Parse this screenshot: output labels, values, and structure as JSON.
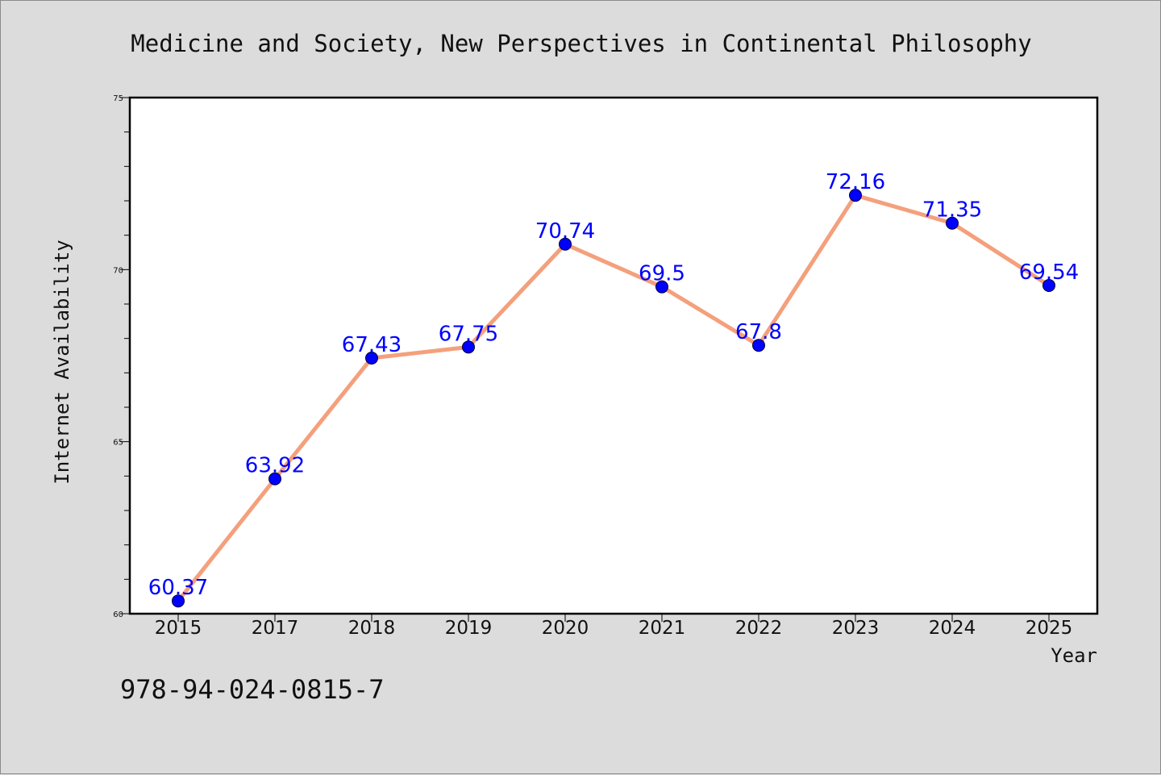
{
  "chart_data": {
    "type": "line",
    "title": "Medicine and Society, New Perspectives in Continental Philosophy",
    "xlabel": "Year",
    "ylabel": "Internet Availability",
    "categories": [
      "2015",
      "2017",
      "2018",
      "2019",
      "2020",
      "2021",
      "2022",
      "2023",
      "2024",
      "2025"
    ],
    "series": [
      {
        "values": [
          60.37,
          63.92,
          67.43,
          67.75,
          70.74,
          69.5,
          67.8,
          72.16,
          71.35,
          69.54
        ],
        "data_labels": [
          "60.37",
          "63.92",
          "67.43",
          "67.75",
          "70.74",
          "69.5",
          "67.8",
          "72.16",
          "71.35",
          "69.54"
        ],
        "line_color": "#f4a07c",
        "marker_color": "#0000ff"
      }
    ],
    "ylim": [
      60,
      75
    ],
    "yticks": [
      "60",
      "65",
      "70",
      "75"
    ],
    "ytick_values": [
      60,
      65,
      70,
      75
    ],
    "grid": false,
    "legend": false
  },
  "footer": {
    "isbn": "978-94-024-0815-7"
  },
  "colors": {
    "background": "#dcdcdc",
    "plot_background": "#ffffff",
    "label_color": "#0000ff"
  }
}
